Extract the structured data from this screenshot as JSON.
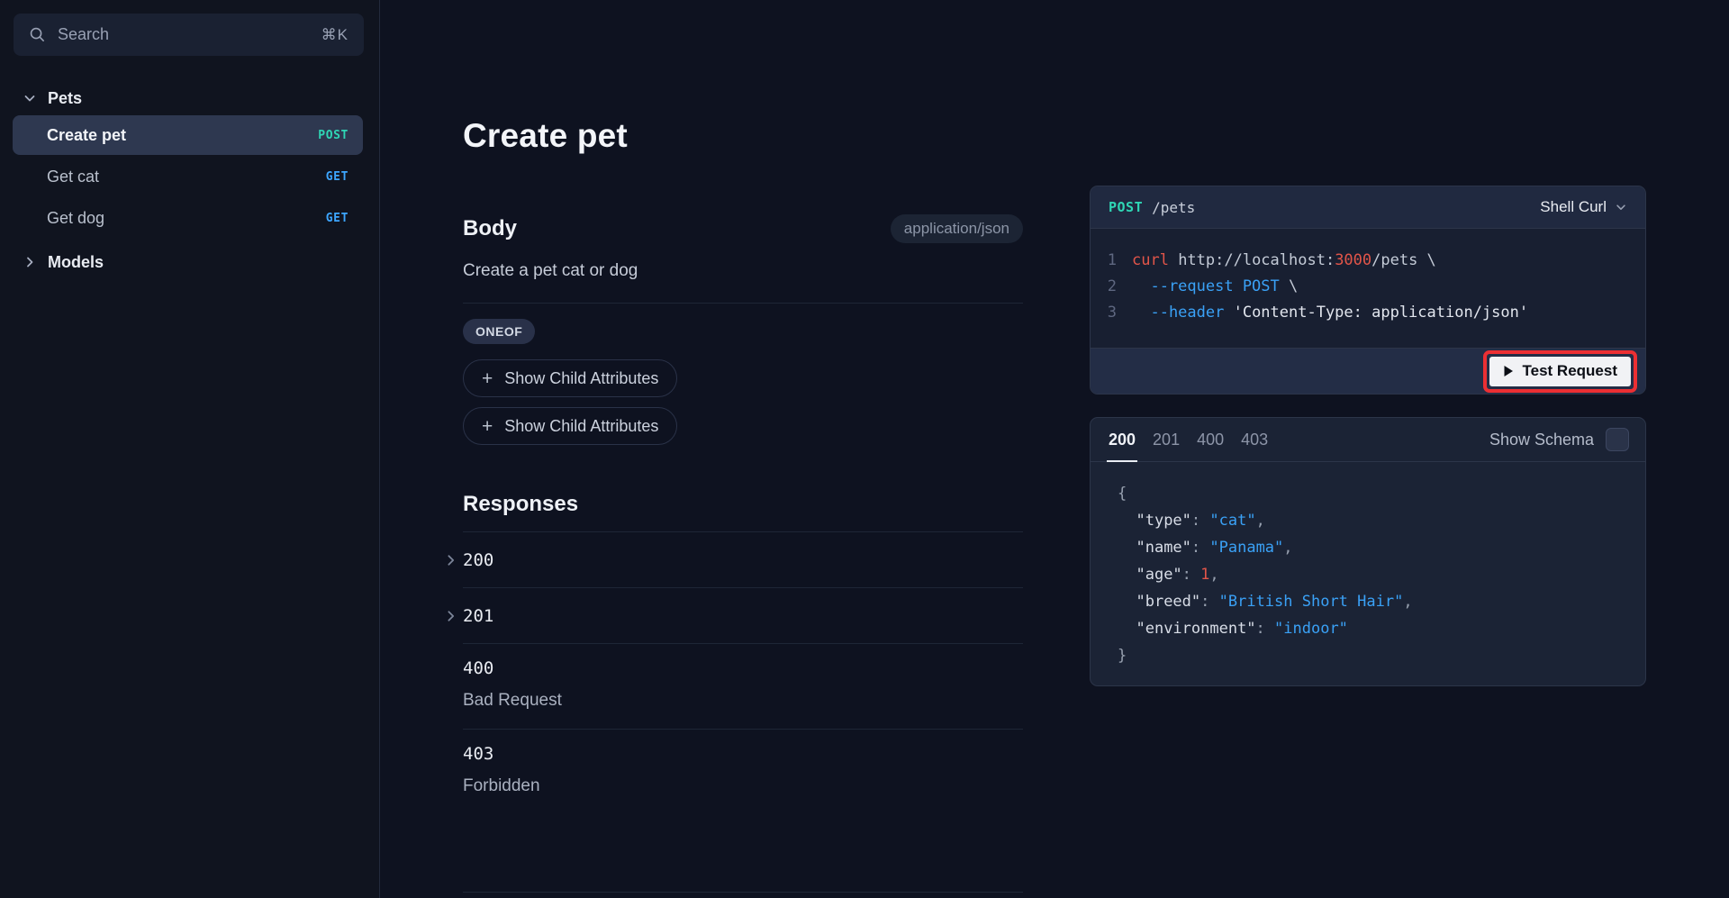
{
  "colors": {
    "method_post": "#2fd6b5",
    "method_get": "#3da6ff",
    "code_red": "#e25549",
    "code_blue": "#3aa1f6",
    "highlight_red": "#ec2f33",
    "selected_row": "#2e3850"
  },
  "sidebar": {
    "search": {
      "placeholder": "Search",
      "shortcut": "⌘K"
    },
    "groups": [
      {
        "label": "Pets",
        "expanded": true,
        "items": [
          {
            "label": "Create pet",
            "method": "POST",
            "selected": true
          },
          {
            "label": "Get cat",
            "method": "GET",
            "selected": false
          },
          {
            "label": "Get dog",
            "method": "GET",
            "selected": false
          }
        ]
      },
      {
        "label": "Models",
        "expanded": false,
        "items": []
      }
    ]
  },
  "main": {
    "title": "Create pet",
    "body_section": {
      "heading": "Body",
      "content_type": "application/json",
      "description": "Create a pet cat or dog",
      "badge": "ONEOF",
      "buttons": [
        "Show Child Attributes",
        "Show Child Attributes"
      ]
    },
    "responses_section": {
      "heading": "Responses",
      "items": [
        {
          "code": "200",
          "expandable": true,
          "description": ""
        },
        {
          "code": "201",
          "expandable": true,
          "description": ""
        },
        {
          "code": "400",
          "expandable": false,
          "description": "Bad Request"
        },
        {
          "code": "403",
          "expandable": false,
          "description": "Forbidden"
        }
      ]
    }
  },
  "request_panel": {
    "method": "POST",
    "path": "/pets",
    "language": "Shell Curl",
    "test_button": "Test Request",
    "code_lines": [
      {
        "num": "1",
        "tokens": [
          {
            "t": "curl",
            "c": "red"
          },
          {
            "t": " http://localhost:",
            "c": "light"
          },
          {
            "t": "3000",
            "c": "red"
          },
          {
            "t": "/pets \\",
            "c": "light"
          }
        ]
      },
      {
        "num": "2",
        "tokens": [
          {
            "t": "  --request POST",
            "c": "blue"
          },
          {
            "t": " \\",
            "c": "light"
          }
        ]
      },
      {
        "num": "3",
        "tokens": [
          {
            "t": "  --header",
            "c": "blue"
          },
          {
            "t": " 'Content-Type: application/json'",
            "c": "white"
          }
        ]
      }
    ]
  },
  "response_panel": {
    "tabs": [
      {
        "label": "200",
        "active": true
      },
      {
        "label": "201",
        "active": false
      },
      {
        "label": "400",
        "active": false
      },
      {
        "label": "403",
        "active": false
      }
    ],
    "show_schema_label": "Show Schema",
    "schema_checked": false,
    "json_lines": [
      [
        {
          "t": "{",
          "c": "punct"
        }
      ],
      [
        {
          "t": "  ",
          "c": "punct"
        },
        {
          "t": "\"type\"",
          "c": "key"
        },
        {
          "t": ": ",
          "c": "punct"
        },
        {
          "t": "\"cat\"",
          "c": "blue"
        },
        {
          "t": ",",
          "c": "punct"
        }
      ],
      [
        {
          "t": "  ",
          "c": "punct"
        },
        {
          "t": "\"name\"",
          "c": "key"
        },
        {
          "t": ": ",
          "c": "punct"
        },
        {
          "t": "\"Panama\"",
          "c": "blue"
        },
        {
          "t": ",",
          "c": "punct"
        }
      ],
      [
        {
          "t": "  ",
          "c": "punct"
        },
        {
          "t": "\"age\"",
          "c": "key"
        },
        {
          "t": ": ",
          "c": "punct"
        },
        {
          "t": "1",
          "c": "red"
        },
        {
          "t": ",",
          "c": "punct"
        }
      ],
      [
        {
          "t": "  ",
          "c": "punct"
        },
        {
          "t": "\"breed\"",
          "c": "key"
        },
        {
          "t": ": ",
          "c": "punct"
        },
        {
          "t": "\"British Short Hair\"",
          "c": "blue"
        },
        {
          "t": ",",
          "c": "punct"
        }
      ],
      [
        {
          "t": "  ",
          "c": "punct"
        },
        {
          "t": "\"environment\"",
          "c": "key"
        },
        {
          "t": ": ",
          "c": "punct"
        },
        {
          "t": "\"indoor\"",
          "c": "blue"
        }
      ],
      [
        {
          "t": "}",
          "c": "punct"
        }
      ]
    ]
  }
}
